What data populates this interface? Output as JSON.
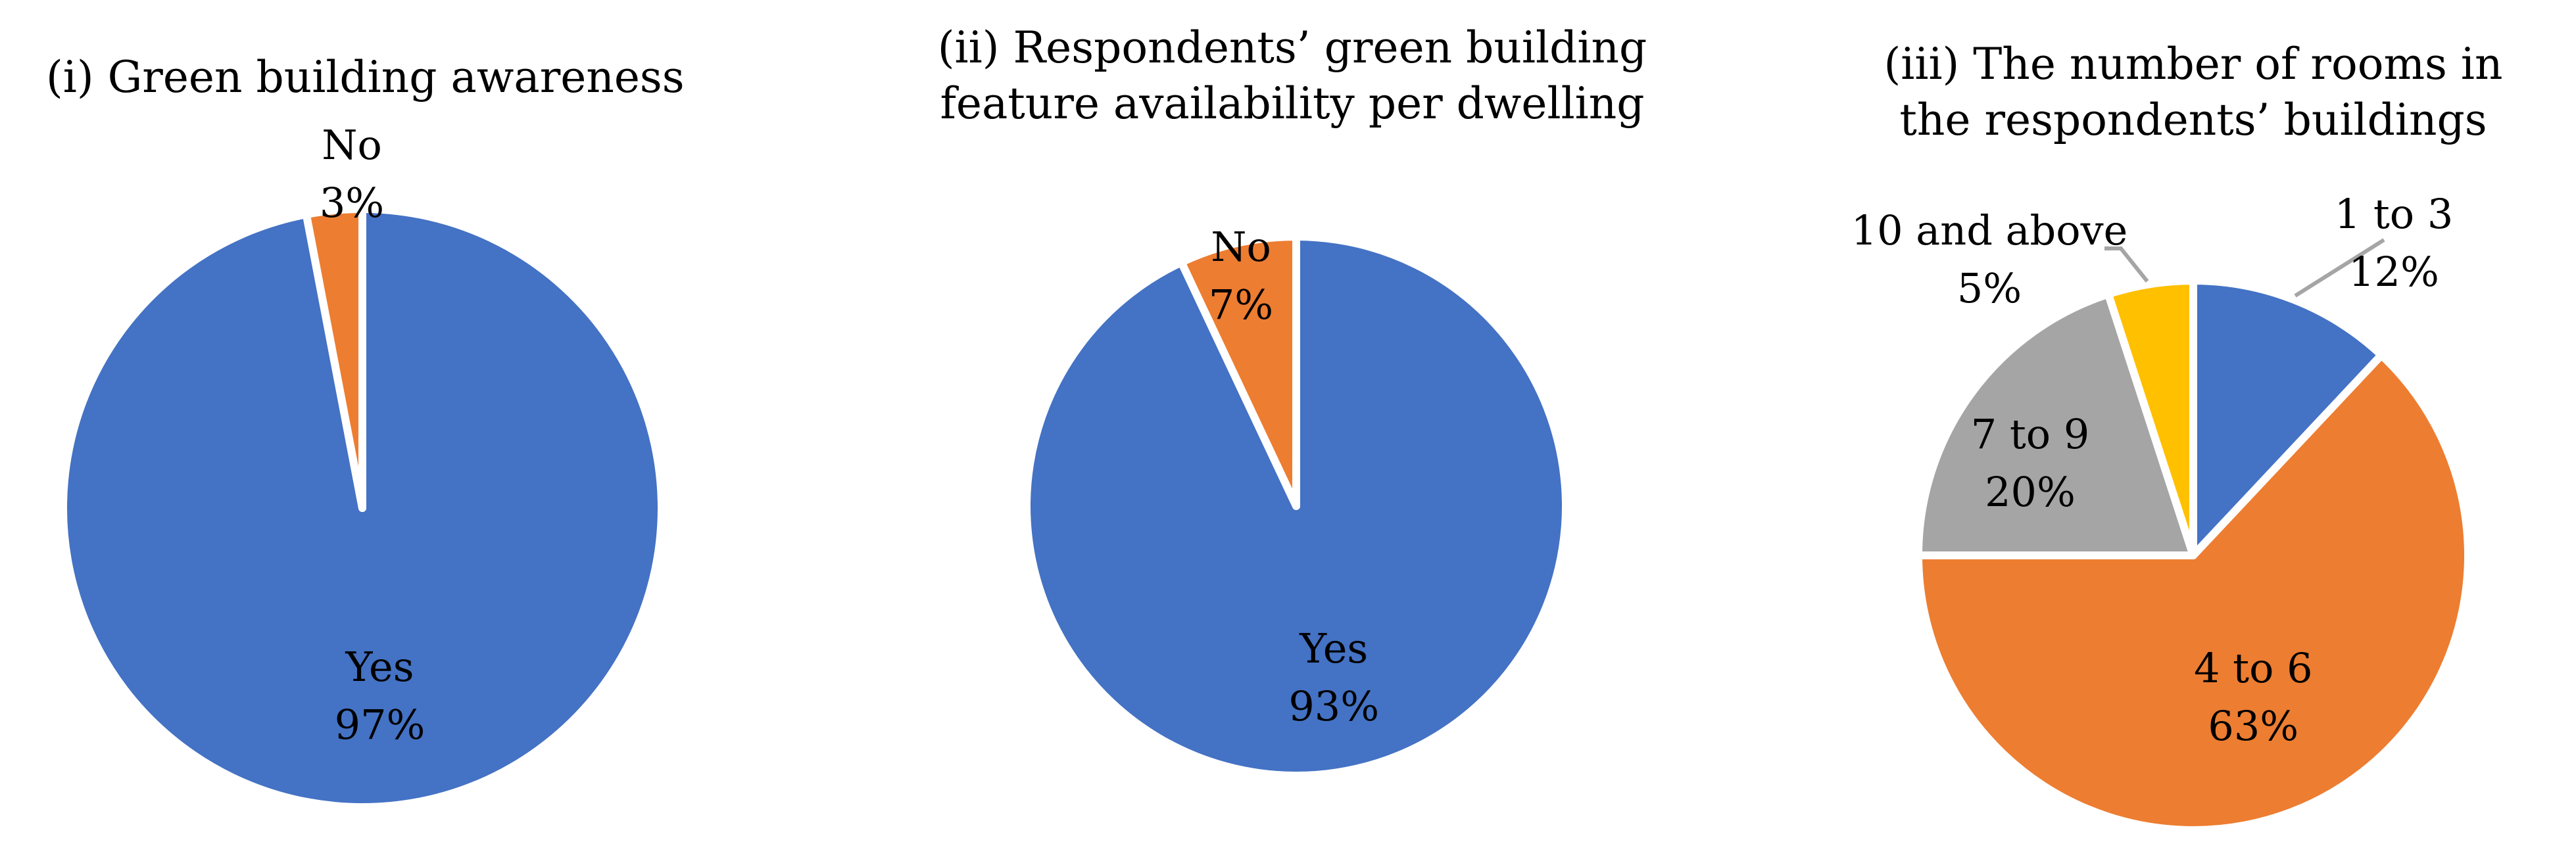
{
  "chart_data": [
    {
      "type": "pie",
      "title": [
        "(i) Green building awareness"
      ],
      "slices": [
        {
          "label": "Yes",
          "percent_label": "97%",
          "value": 97,
          "color": "#4472C4"
        },
        {
          "label": "No",
          "percent_label": "3%",
          "value": 3,
          "color": "#ED7D31"
        }
      ]
    },
    {
      "type": "pie",
      "title": [
        "(ii) Respondents’ green building",
        "feature availability per dwelling"
      ],
      "slices": [
        {
          "label": "Yes",
          "percent_label": "93%",
          "value": 93,
          "color": "#4472C4"
        },
        {
          "label": "No",
          "percent_label": "7%",
          "value": 7,
          "color": "#ED7D31"
        }
      ]
    },
    {
      "type": "pie",
      "title": [
        "(iii) The number of rooms in",
        "the respondents’ buildings"
      ],
      "slices": [
        {
          "label": "1 to 3",
          "percent_label": "12%",
          "value": 12,
          "color": "#4472C4"
        },
        {
          "label": "4 to 6",
          "percent_label": "63%",
          "value": 63,
          "color": "#ED7D31"
        },
        {
          "label": "7 to 9",
          "percent_label": "20%",
          "value": 20,
          "color": "#A5A5A5"
        },
        {
          "label": "10 and above",
          "percent_label": "5%",
          "value": 5,
          "color": "#FFC000"
        }
      ]
    }
  ]
}
